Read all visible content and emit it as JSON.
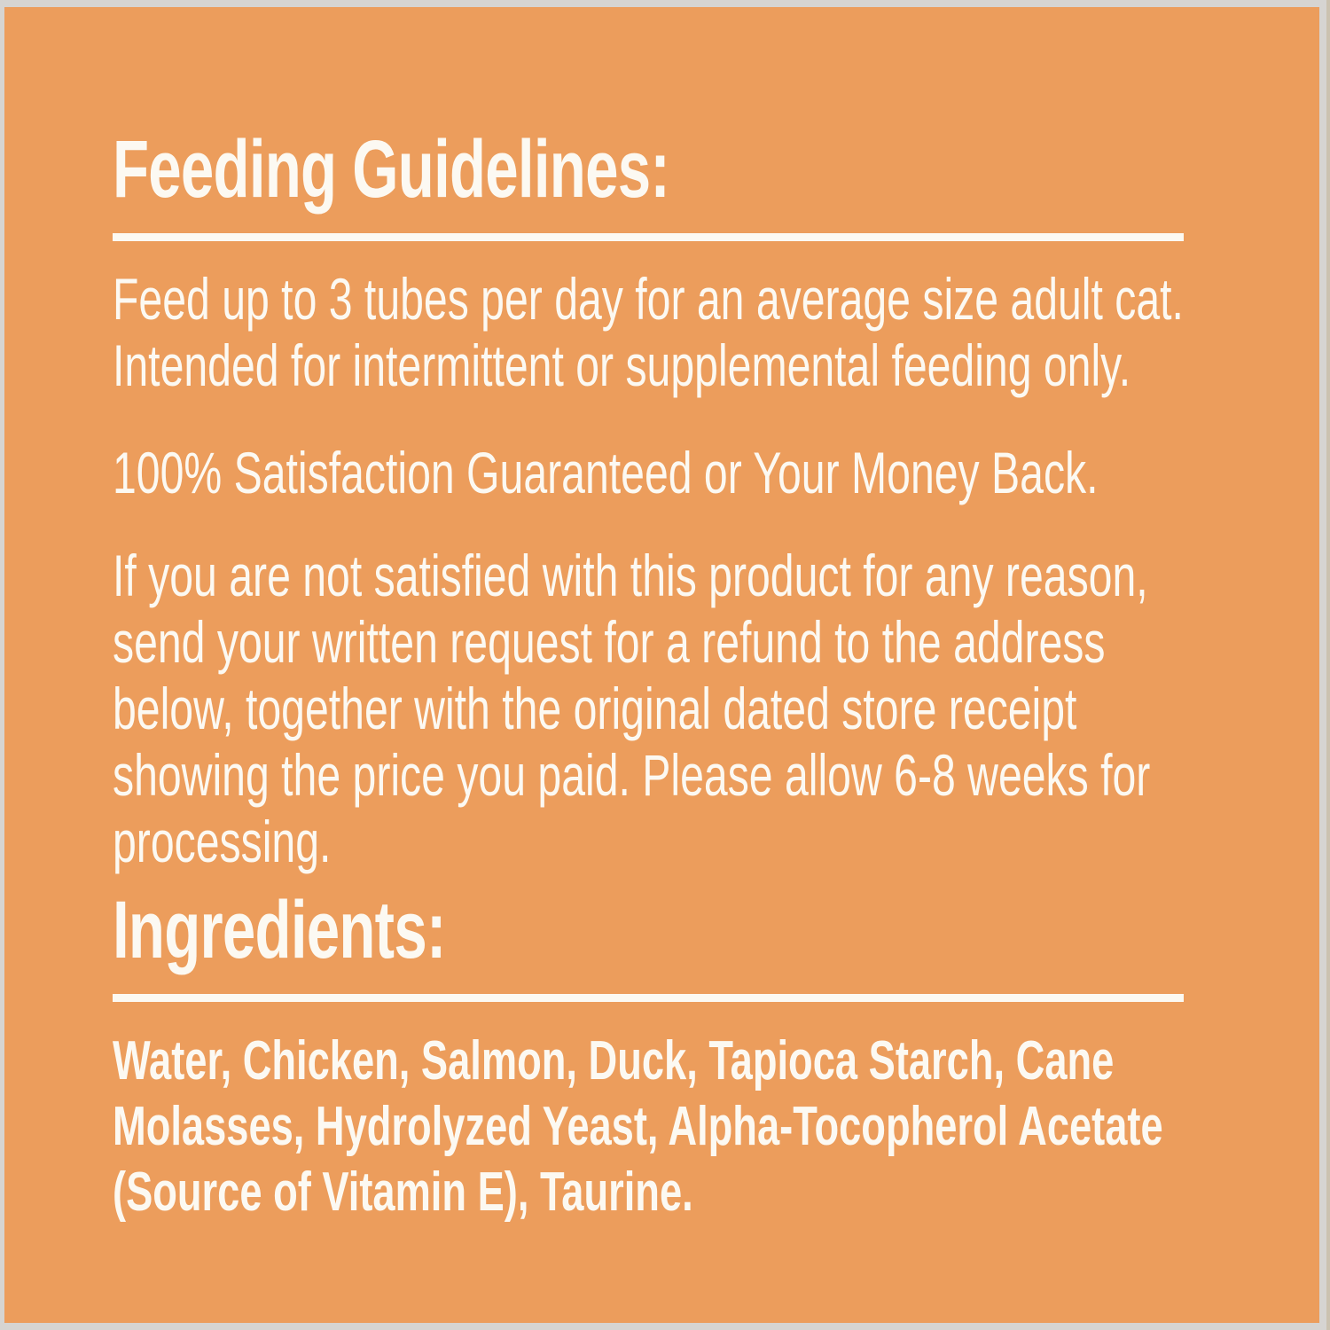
{
  "page": {
    "colors": {
      "page-bg": "#D6D4D1",
      "panel-bg": "#EC9D5C",
      "text-color": "#FCF9F2",
      "edge-shade": "#CBC2B0"
    }
  },
  "label": {
    "feeding": {
      "heading": "Feeding Guidelines:",
      "paragraphs": [
        "Feed up to 3 tubes per day for an average size adult cat.\nIntended for intermittent or supplemental feeding only.",
        "100% Satisfaction Guaranteed or Your Money Back.",
        "If you are not satisfied with this product for any reason,\nsend your written request for a refund to the address\nbelow, together with the original dated store receipt\nshowing the price you paid. Please allow 6-8 weeks for\nprocessing."
      ]
    },
    "ingredients": {
      "heading": "Ingredients:",
      "list": "Water, Chicken, Salmon, Duck, Tapioca Starch, Cane\nMolasses, Hydrolyzed Yeast, Alpha-Tocopherol Acetate\n(Source of Vitamin E), Taurine."
    }
  }
}
